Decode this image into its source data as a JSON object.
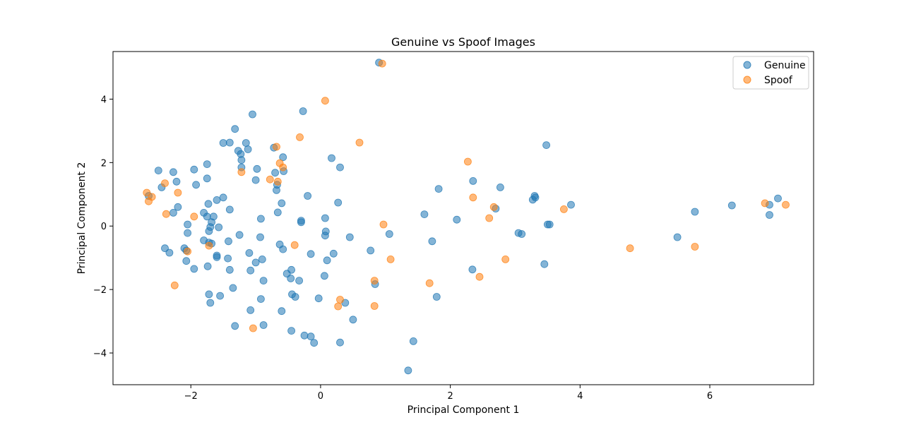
{
  "chart_data": {
    "type": "scatter",
    "title": "Genuine vs Spoof Images",
    "xlabel": "Principal Component 1",
    "ylabel": "Principal Component 2",
    "xlim": [
      -3.2,
      7.6
    ],
    "ylim": [
      -5.0,
      5.5
    ],
    "xticks": [
      -2,
      0,
      2,
      4,
      6
    ],
    "yticks": [
      -4,
      -2,
      0,
      2,
      4
    ],
    "xtick_labels": [
      "−2",
      "0",
      "2",
      "4",
      "6"
    ],
    "ytick_labels": [
      "−4",
      "−2",
      "0",
      "2",
      "4"
    ],
    "grid": false,
    "legend_position": "top-right",
    "series": [
      {
        "name": "Genuine",
        "color": "#1f77b4",
        "points": [
          [
            0.9,
            5.15
          ],
          [
            -0.27,
            3.62
          ],
          [
            -1.05,
            3.52
          ],
          [
            -1.32,
            3.06
          ],
          [
            -1.5,
            2.62
          ],
          [
            -1.4,
            2.63
          ],
          [
            -1.15,
            2.62
          ],
          [
            -1.27,
            2.37
          ],
          [
            -1.12,
            2.42
          ],
          [
            -1.23,
            2.27
          ],
          [
            -1.22,
            2.08
          ],
          [
            -0.72,
            2.47
          ],
          [
            -0.58,
            2.17
          ],
          [
            0.17,
            2.14
          ],
          [
            0.3,
            1.85
          ],
          [
            -1.22,
            1.85
          ],
          [
            -0.98,
            1.8
          ],
          [
            -0.7,
            1.68
          ],
          [
            -0.57,
            1.73
          ],
          [
            -1.0,
            1.45
          ],
          [
            -0.67,
            1.3
          ],
          [
            -0.68,
            1.13
          ],
          [
            -0.6,
            0.72
          ],
          [
            -0.66,
            0.43
          ],
          [
            -1.5,
            0.9
          ],
          [
            -1.4,
            0.52
          ],
          [
            -0.92,
            0.23
          ],
          [
            -0.3,
            0.12
          ],
          [
            -0.3,
            0.17
          ],
          [
            -0.2,
            0.95
          ],
          [
            0.27,
            0.74
          ],
          [
            0.07,
            0.25
          ],
          [
            0.08,
            -0.17
          ],
          [
            0.07,
            -0.3
          ],
          [
            0.45,
            -0.35
          ],
          [
            -1.25,
            -0.28
          ],
          [
            -0.93,
            -0.35
          ],
          [
            -0.63,
            -0.58
          ],
          [
            -0.58,
            -0.73
          ],
          [
            -0.15,
            -0.88
          ],
          [
            0.2,
            -0.87
          ],
          [
            0.1,
            -1.08
          ],
          [
            -1.1,
            -0.85
          ],
          [
            -1.0,
            -1.15
          ],
          [
            -0.9,
            -1.05
          ],
          [
            -1.08,
            -1.4
          ],
          [
            -0.52,
            -1.5
          ],
          [
            -0.46,
            -1.65
          ],
          [
            -0.45,
            -1.38
          ],
          [
            -0.33,
            -1.72
          ],
          [
            -0.88,
            -1.72
          ],
          [
            0.06,
            -1.57
          ],
          [
            -0.44,
            -2.15
          ],
          [
            -0.39,
            -2.23
          ],
          [
            -0.03,
            -2.28
          ],
          [
            0.38,
            -2.42
          ],
          [
            -0.92,
            -2.3
          ],
          [
            -1.08,
            -2.65
          ],
          [
            -0.6,
            -2.68
          ],
          [
            -1.35,
            -1.95
          ],
          [
            -0.45,
            -3.3
          ],
          [
            -0.25,
            -3.45
          ],
          [
            -0.15,
            -3.48
          ],
          [
            -0.1,
            -3.68
          ],
          [
            0.3,
            -3.67
          ],
          [
            0.5,
            -2.95
          ],
          [
            -0.88,
            -3.12
          ],
          [
            -1.32,
            -3.15
          ],
          [
            0.77,
            -0.77
          ],
          [
            1.06,
            -0.25
          ],
          [
            0.84,
            -1.83
          ],
          [
            1.6,
            0.37
          ],
          [
            1.82,
            1.17
          ],
          [
            1.72,
            -0.48
          ],
          [
            1.79,
            -2.23
          ],
          [
            1.43,
            -3.63
          ],
          [
            1.35,
            -4.55
          ],
          [
            2.1,
            0.2
          ],
          [
            2.35,
            1.42
          ],
          [
            2.34,
            -1.37
          ],
          [
            2.7,
            0.55
          ],
          [
            2.77,
            1.22
          ],
          [
            3.05,
            -0.22
          ],
          [
            3.1,
            -0.25
          ],
          [
            3.27,
            0.83
          ],
          [
            3.3,
            0.95
          ],
          [
            3.31,
            0.9
          ],
          [
            3.45,
            -1.2
          ],
          [
            3.5,
            0.05
          ],
          [
            3.53,
            0.05
          ],
          [
            3.48,
            2.55
          ],
          [
            3.86,
            0.67
          ],
          [
            5.5,
            -0.35
          ],
          [
            5.77,
            0.45
          ],
          [
            6.34,
            0.65
          ],
          [
            6.92,
            0.67
          ],
          [
            6.92,
            0.35
          ],
          [
            7.05,
            0.87
          ],
          [
            -2.65,
            0.95
          ],
          [
            -2.5,
            1.75
          ],
          [
            -2.45,
            1.22
          ],
          [
            -2.27,
            1.7
          ],
          [
            -2.22,
            1.4
          ],
          [
            -2.27,
            0.42
          ],
          [
            -2.2,
            0.6
          ],
          [
            -1.95,
            1.78
          ],
          [
            -1.92,
            1.3
          ],
          [
            -1.75,
            1.95
          ],
          [
            -1.75,
            1.5
          ],
          [
            -1.73,
            0.7
          ],
          [
            -1.6,
            0.82
          ],
          [
            -1.8,
            0.42
          ],
          [
            -1.75,
            0.3
          ],
          [
            -1.65,
            0.3
          ],
          [
            -1.68,
            0.12
          ],
          [
            -1.7,
            -0.03
          ],
          [
            -1.72,
            -0.16
          ],
          [
            -1.57,
            -0.04
          ],
          [
            -2.05,
            0.05
          ],
          [
            -2.05,
            -0.22
          ],
          [
            -1.8,
            -0.45
          ],
          [
            -1.72,
            -0.52
          ],
          [
            -1.68,
            -0.55
          ],
          [
            -1.6,
            -0.93
          ],
          [
            -1.6,
            -0.98
          ],
          [
            -1.74,
            -1.27
          ],
          [
            -1.42,
            -0.48
          ],
          [
            -1.43,
            -1.02
          ],
          [
            -1.4,
            -1.38
          ],
          [
            -1.95,
            -1.35
          ],
          [
            -2.1,
            -0.7
          ],
          [
            -2.07,
            -0.77
          ],
          [
            -2.07,
            -1.1
          ],
          [
            -2.4,
            -0.7
          ],
          [
            -2.33,
            -0.84
          ],
          [
            -1.72,
            -2.15
          ],
          [
            -1.7,
            -2.42
          ],
          [
            -1.55,
            -2.2
          ]
        ]
      },
      {
        "name": "Spoof",
        "color": "#ff7f0e",
        "points": [
          [
            0.95,
            5.12
          ],
          [
            0.07,
            3.95
          ],
          [
            -0.32,
            2.8
          ],
          [
            0.6,
            2.63
          ],
          [
            -0.68,
            2.5
          ],
          [
            -0.63,
            1.98
          ],
          [
            -0.58,
            1.85
          ],
          [
            -1.22,
            1.7
          ],
          [
            -0.78,
            1.47
          ],
          [
            -0.66,
            1.4
          ],
          [
            -2.4,
            1.35
          ],
          [
            -2.2,
            1.05
          ],
          [
            -2.68,
            1.05
          ],
          [
            -2.6,
            0.92
          ],
          [
            -2.65,
            0.78
          ],
          [
            -2.38,
            0.38
          ],
          [
            -1.95,
            0.3
          ],
          [
            -0.4,
            -0.6
          ],
          [
            -2.05,
            -0.8
          ],
          [
            -1.72,
            -0.62
          ],
          [
            -2.25,
            -1.87
          ],
          [
            0.97,
            0.05
          ],
          [
            1.08,
            -1.05
          ],
          [
            0.83,
            -1.72
          ],
          [
            0.3,
            -2.32
          ],
          [
            0.27,
            -2.53
          ],
          [
            0.83,
            -2.52
          ],
          [
            -1.04,
            -3.22
          ],
          [
            2.27,
            2.03
          ],
          [
            2.35,
            0.9
          ],
          [
            2.67,
            0.6
          ],
          [
            2.6,
            0.25
          ],
          [
            2.45,
            -1.6
          ],
          [
            2.85,
            -1.05
          ],
          [
            1.68,
            -1.8
          ],
          [
            3.75,
            0.53
          ],
          [
            4.77,
            -0.7
          ],
          [
            5.77,
            -0.65
          ],
          [
            6.85,
            0.72
          ],
          [
            7.17,
            0.67
          ]
        ]
      }
    ]
  }
}
